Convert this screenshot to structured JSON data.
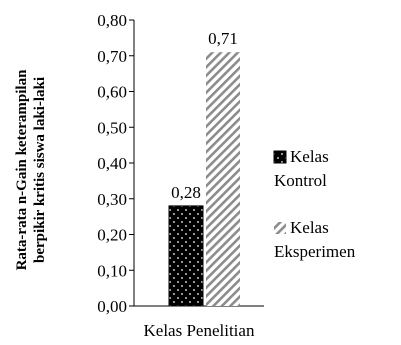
{
  "chart_data": {
    "type": "bar",
    "ylabel_lines": [
      "Rata-rata n-Gain keterampilan",
      "berpikir kritis siswa laki-laki"
    ],
    "xlabel": "Kelas Penelitian",
    "ylim": [
      0,
      0.8
    ],
    "yticks": [
      "0,00",
      "0,10",
      "0,20",
      "0,30",
      "0,40",
      "0,50",
      "0,60",
      "0,70",
      "0,80"
    ],
    "series": [
      {
        "name_lines": [
          "Kelas",
          "Kontrol"
        ],
        "value": 0.28,
        "label": "0,28",
        "pattern": "dots"
      },
      {
        "name_lines": [
          "Kelas",
          "Eksperimen"
        ],
        "value": 0.71,
        "label": "0,71",
        "pattern": "hatch"
      }
    ],
    "grid": false,
    "legend": "right"
  }
}
